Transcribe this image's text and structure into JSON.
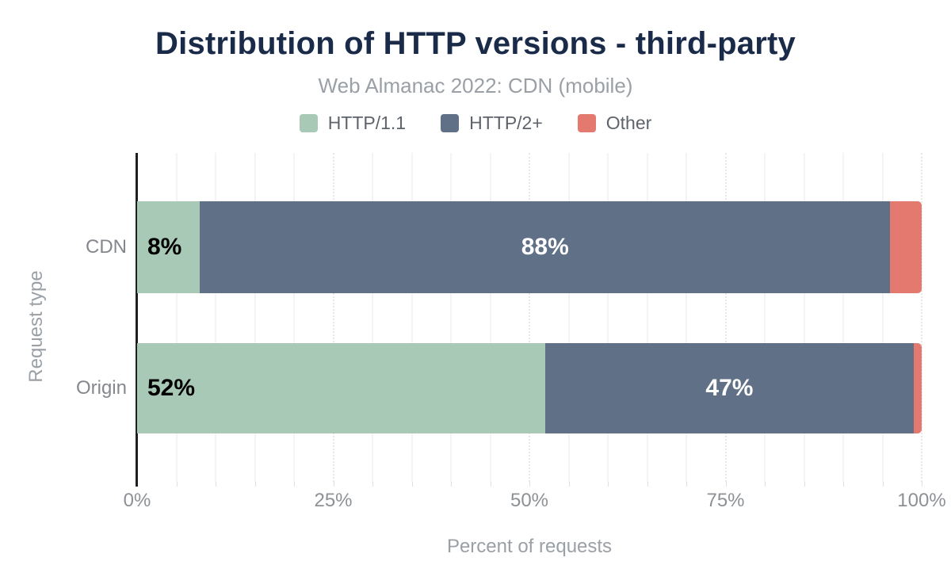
{
  "page": {
    "background": "#ffffff"
  },
  "chart_data": {
    "type": "bar",
    "orientation": "horizontal_stacked",
    "title": "Distribution of HTTP versions - third-party",
    "subtitle": "Web Almanac 2022: CDN (mobile)",
    "xlabel": "Percent of requests",
    "ylabel": "Request type",
    "xlim": [
      0,
      100
    ],
    "xticks": [
      {
        "value": 0,
        "label": "0%"
      },
      {
        "value": 25,
        "label": "25%"
      },
      {
        "value": 50,
        "label": "50%"
      },
      {
        "value": 75,
        "label": "75%"
      },
      {
        "value": 100,
        "label": "100%"
      }
    ],
    "grid": {
      "minor_step_pct": 5,
      "major_step_pct": 25,
      "shown": true
    },
    "legend_position": "top",
    "categories": [
      "CDN",
      "Origin"
    ],
    "series": [
      {
        "name": "HTTP/1.1",
        "color": "#a7c9b6",
        "values": [
          8,
          52
        ],
        "labels": [
          "8%",
          "52%"
        ],
        "label_color": "#000000",
        "label_align": "start"
      },
      {
        "name": "HTTP/2+",
        "color": "#5f7087",
        "values": [
          88,
          47
        ],
        "labels": [
          "88%",
          "47%"
        ],
        "label_color": "#ffffff",
        "label_align": "center"
      },
      {
        "name": "Other",
        "color": "#e4796f",
        "values": [
          4,
          1
        ],
        "labels": [
          null,
          null
        ],
        "label_color": "#ffffff",
        "label_align": "center"
      }
    ]
  },
  "colors": {
    "title": "#1a2b49",
    "subtitle": "#9aa0a6",
    "legend_text": "#5f646c",
    "category_text": "#84888e",
    "tick_text": "#8d9196",
    "axis_title_text": "#9aa0a6",
    "axis_line": "#1f1f1f",
    "grid_minor": "#f4f4f4",
    "grid_major": "#e7e7e7"
  }
}
